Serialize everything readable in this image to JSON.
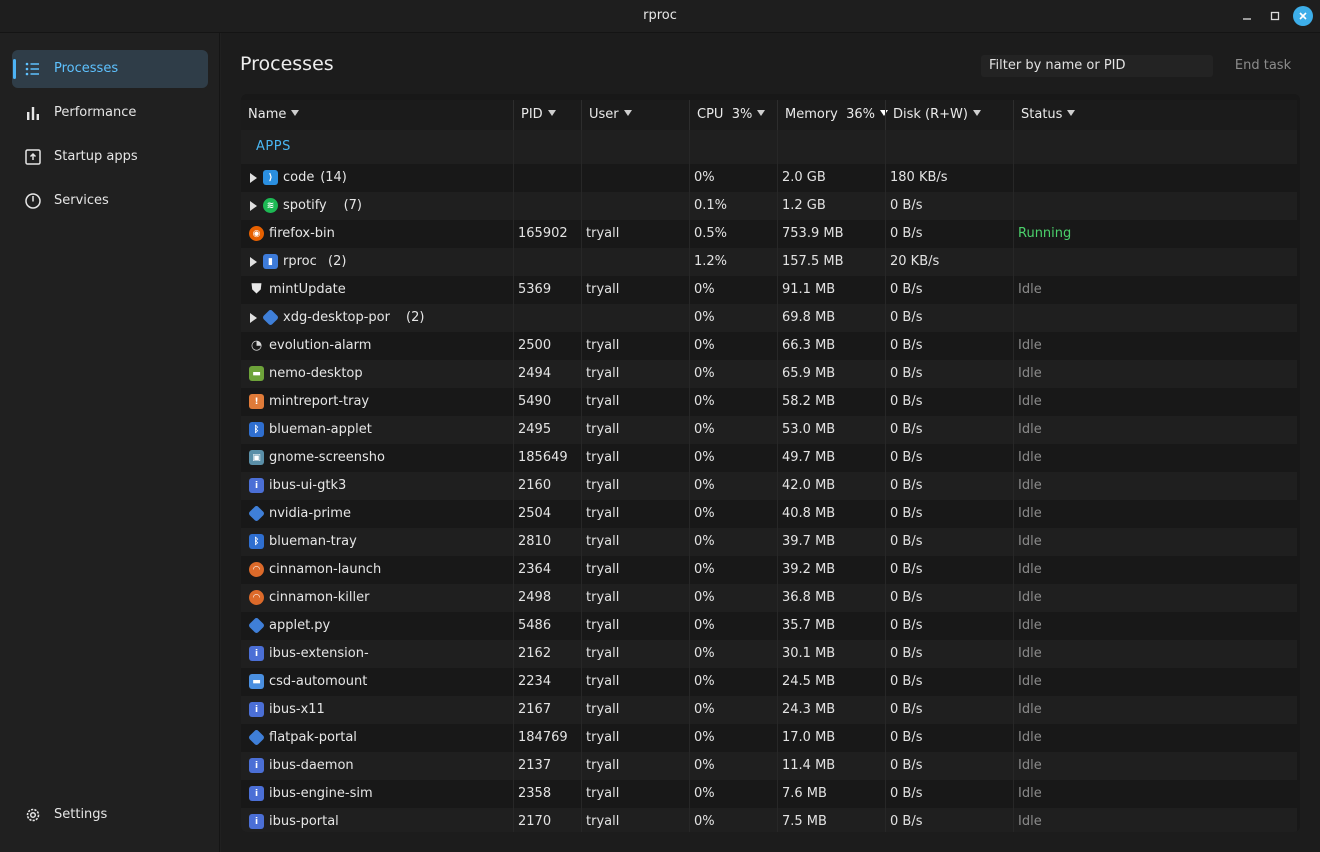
{
  "window": {
    "title": "rproc"
  },
  "sidebar": {
    "items": [
      {
        "label": "Processes",
        "icon": "list-icon",
        "active": true
      },
      {
        "label": "Performance",
        "icon": "bar-chart-icon",
        "active": false
      },
      {
        "label": "Startup apps",
        "icon": "startup-icon",
        "active": false
      },
      {
        "label": "Services",
        "icon": "power-icon",
        "active": false
      }
    ],
    "settings_label": "Settings"
  },
  "main": {
    "title": "Processes",
    "filter_placeholder": "Filter by name or PID",
    "end_task_label": "End task"
  },
  "table": {
    "columns": [
      {
        "label": "Name"
      },
      {
        "label": "PID"
      },
      {
        "label": "User"
      },
      {
        "label": "CPU  3%"
      },
      {
        "label": "Memory  36%"
      },
      {
        "label": "Disk (R+W)"
      },
      {
        "label": "Status"
      }
    ],
    "group_label": "APPS",
    "rows": [
      {
        "name": "code",
        "count": "(14)",
        "expand": true,
        "icon": "vscode-icon",
        "icon_color": "#2b8fe0",
        "pid": "",
        "user": "",
        "cpu": "0%",
        "mem": "2.0 GB",
        "disk": "180 KB/s",
        "status": ""
      },
      {
        "name": "spotify",
        "count": "(7)",
        "expand": true,
        "icon": "spotify-icon",
        "icon_color": "#1db954",
        "pid": "",
        "user": "",
        "cpu": "0.1%",
        "mem": "1.2 GB",
        "disk": "0 B/s",
        "status": ""
      },
      {
        "name": "firefox-bin",
        "count": "",
        "expand": false,
        "icon": "firefox-icon",
        "icon_color": "#e66000",
        "pid": "165902",
        "user": "tryall",
        "cpu": "0.5%",
        "mem": "753.9 MB",
        "disk": "0 B/s",
        "status": "Running"
      },
      {
        "name": "rproc",
        "count": "(2)",
        "expand": true,
        "icon": "rproc-icon",
        "icon_color": "#3d7bd9",
        "pid": "",
        "user": "",
        "cpu": "1.2%",
        "mem": "157.5 MB",
        "disk": "20 KB/s",
        "status": ""
      },
      {
        "name": "mintUpdate",
        "count": "",
        "expand": false,
        "icon": "shield-icon",
        "icon_color": "#e8e8e8",
        "pid": "5369",
        "user": "tryall",
        "cpu": "0%",
        "mem": "91.1 MB",
        "disk": "0 B/s",
        "status": "Idle"
      },
      {
        "name": "xdg-desktop-por",
        "count": "(2)",
        "expand": true,
        "icon": "python-icon",
        "icon_color": "#3f7fd8",
        "pid": "",
        "user": "",
        "cpu": "0%",
        "mem": "69.8 MB",
        "disk": "0 B/s",
        "status": ""
      },
      {
        "name": "evolution-alarm",
        "count": "",
        "expand": false,
        "icon": "clock-icon",
        "icon_color": "#d9d9d9",
        "pid": "2500",
        "user": "tryall",
        "cpu": "0%",
        "mem": "66.3 MB",
        "disk": "0 B/s",
        "status": "Idle"
      },
      {
        "name": "nemo-desktop",
        "count": "",
        "expand": false,
        "icon": "folder-icon",
        "icon_color": "#6ea33a",
        "pid": "2494",
        "user": "tryall",
        "cpu": "0%",
        "mem": "65.9 MB",
        "disk": "0 B/s",
        "status": "Idle"
      },
      {
        "name": "mintreport-tray",
        "count": "",
        "expand": false,
        "icon": "report-icon",
        "icon_color": "#e07b39",
        "pid": "5490",
        "user": "tryall",
        "cpu": "0%",
        "mem": "58.2 MB",
        "disk": "0 B/s",
        "status": "Idle"
      },
      {
        "name": "blueman-applet",
        "count": "",
        "expand": false,
        "icon": "bluetooth-icon",
        "icon_color": "#2f6fd0",
        "pid": "2495",
        "user": "tryall",
        "cpu": "0%",
        "mem": "53.0 MB",
        "disk": "0 B/s",
        "status": "Idle"
      },
      {
        "name": "gnome-screensho",
        "count": "",
        "expand": false,
        "icon": "screenshot-icon",
        "icon_color": "#5a8fa8",
        "pid": "185649",
        "user": "tryall",
        "cpu": "0%",
        "mem": "49.7 MB",
        "disk": "0 B/s",
        "status": "Idle"
      },
      {
        "name": "ibus-ui-gtk3",
        "count": "",
        "expand": false,
        "icon": "info-icon",
        "icon_color": "#4b6fd6",
        "pid": "2160",
        "user": "tryall",
        "cpu": "0%",
        "mem": "42.0 MB",
        "disk": "0 B/s",
        "status": "Idle"
      },
      {
        "name": "nvidia-prime",
        "count": "",
        "expand": false,
        "icon": "python-icon",
        "icon_color": "#3f7fd8",
        "pid": "2504",
        "user": "tryall",
        "cpu": "0%",
        "mem": "40.8 MB",
        "disk": "0 B/s",
        "status": "Idle"
      },
      {
        "name": "blueman-tray",
        "count": "",
        "expand": false,
        "icon": "bluetooth-icon",
        "icon_color": "#2f6fd0",
        "pid": "2810",
        "user": "tryall",
        "cpu": "0%",
        "mem": "39.7 MB",
        "disk": "0 B/s",
        "status": "Idle"
      },
      {
        "name": "cinnamon-launch",
        "count": "",
        "expand": false,
        "icon": "cinnamon-icon",
        "icon_color": "#dc6a2a",
        "pid": "2364",
        "user": "tryall",
        "cpu": "0%",
        "mem": "39.2 MB",
        "disk": "0 B/s",
        "status": "Idle"
      },
      {
        "name": "cinnamon-killer",
        "count": "",
        "expand": false,
        "icon": "cinnamon-icon",
        "icon_color": "#dc6a2a",
        "pid": "2498",
        "user": "tryall",
        "cpu": "0%",
        "mem": "36.8 MB",
        "disk": "0 B/s",
        "status": "Idle"
      },
      {
        "name": "applet.py",
        "count": "",
        "expand": false,
        "icon": "python-icon",
        "icon_color": "#3f7fd8",
        "pid": "5486",
        "user": "tryall",
        "cpu": "0%",
        "mem": "35.7 MB",
        "disk": "0 B/s",
        "status": "Idle"
      },
      {
        "name": "ibus-extension-",
        "count": "",
        "expand": false,
        "icon": "info-icon",
        "icon_color": "#4b6fd6",
        "pid": "2162",
        "user": "tryall",
        "cpu": "0%",
        "mem": "30.1 MB",
        "disk": "0 B/s",
        "status": "Idle"
      },
      {
        "name": "csd-automount",
        "count": "",
        "expand": false,
        "icon": "folder-icon",
        "icon_color": "#4a8fe0",
        "pid": "2234",
        "user": "tryall",
        "cpu": "0%",
        "mem": "24.5 MB",
        "disk": "0 B/s",
        "status": "Idle"
      },
      {
        "name": "ibus-x11",
        "count": "",
        "expand": false,
        "icon": "info-icon",
        "icon_color": "#4b6fd6",
        "pid": "2167",
        "user": "tryall",
        "cpu": "0%",
        "mem": "24.3 MB",
        "disk": "0 B/s",
        "status": "Idle"
      },
      {
        "name": "flatpak-portal",
        "count": "",
        "expand": false,
        "icon": "python-icon",
        "icon_color": "#3f7fd8",
        "pid": "184769",
        "user": "tryall",
        "cpu": "0%",
        "mem": "17.0 MB",
        "disk": "0 B/s",
        "status": "Idle"
      },
      {
        "name": "ibus-daemon",
        "count": "",
        "expand": false,
        "icon": "info-icon",
        "icon_color": "#4b6fd6",
        "pid": "2137",
        "user": "tryall",
        "cpu": "0%",
        "mem": "11.4 MB",
        "disk": "0 B/s",
        "status": "Idle"
      },
      {
        "name": "ibus-engine-sim",
        "count": "",
        "expand": false,
        "icon": "info-icon",
        "icon_color": "#4b6fd6",
        "pid": "2358",
        "user": "tryall",
        "cpu": "0%",
        "mem": "7.6 MB",
        "disk": "0 B/s",
        "status": "Idle"
      },
      {
        "name": "ibus-portal",
        "count": "",
        "expand": false,
        "icon": "info-icon",
        "icon_color": "#4b6fd6",
        "pid": "2170",
        "user": "tryall",
        "cpu": "0%",
        "mem": "7.5 MB",
        "disk": "0 B/s",
        "status": "Idle"
      }
    ]
  }
}
